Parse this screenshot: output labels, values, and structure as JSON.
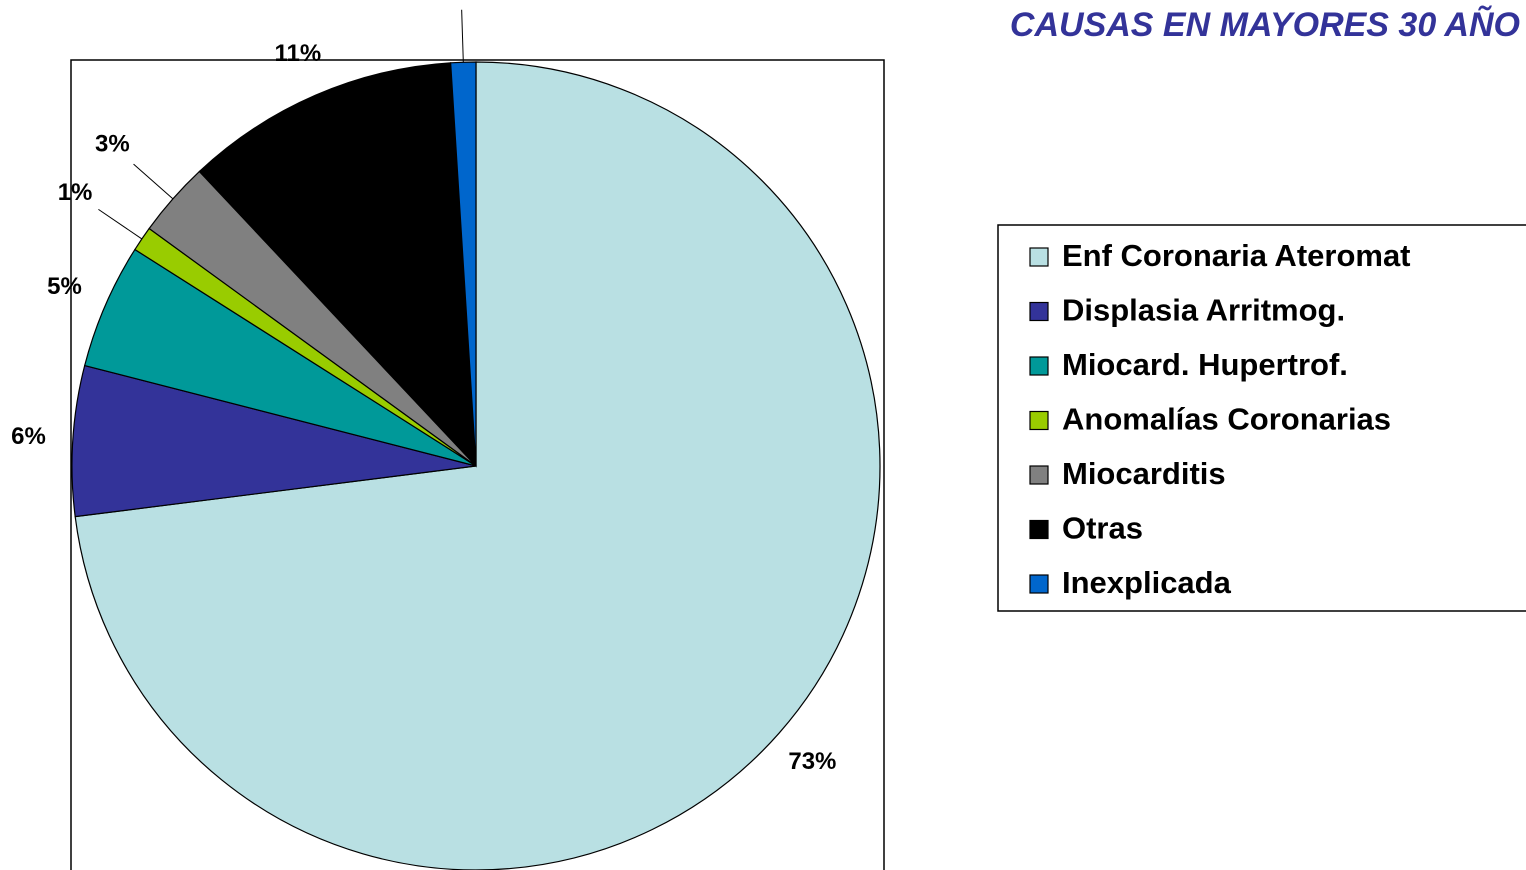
{
  "chart_data": {
    "type": "pie",
    "title": "CAUSAS EN MAYORES 30 AÑO",
    "categories": [
      "Enf Coronaria Ateromat",
      "Displasia Arritmog.",
      "Miocard. Hupertrof.",
      "Anomalías Coronarias",
      "Miocarditis",
      "Otras",
      "Inexplicada"
    ],
    "values": [
      73,
      6,
      5,
      1,
      3,
      11,
      1
    ],
    "value_labels": [
      "73%",
      "6%",
      "5%",
      "1%",
      "3%",
      "11%",
      "1%"
    ],
    "colors": [
      "#b9e0e3",
      "#333399",
      "#009999",
      "#99cc00",
      "#808080",
      "#000000",
      "#0066cc"
    ],
    "legend": "right"
  }
}
